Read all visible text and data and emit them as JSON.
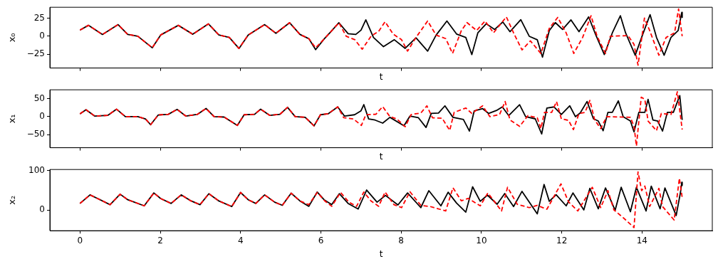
{
  "chart_data": [
    {
      "type": "line",
      "xlabel": "t",
      "ylabel": "x₀",
      "xlim": [
        -0.75,
        15.75
      ],
      "xticks": [
        0,
        2,
        4,
        6,
        8,
        10,
        12,
        14
      ],
      "ylim": [
        -44,
        40
      ],
      "yticks": [
        -25,
        0,
        25
      ],
      "tick_labels": "y",
      "grid": false,
      "series": [
        {
          "color": "#000000",
          "line_style": "solid",
          "x": [
            0,
            0.21,
            0.56,
            0.95,
            1.19,
            1.44,
            1.8,
            2.01,
            2.45,
            2.81,
            3.2,
            3.46,
            3.72,
            3.96,
            4.19,
            4.6,
            4.88,
            5.22,
            5.48,
            5.7,
            5.87,
            6.08,
            6.24,
            6.45,
            6.68,
            6.87,
            7.0,
            7.12,
            7.31,
            7.56,
            7.83,
            8.1,
            8.37,
            8.66,
            8.87,
            9.14,
            9.38,
            9.61,
            9.76,
            9.91,
            10.12,
            10.33,
            10.53,
            10.71,
            10.98,
            11.19,
            11.39,
            11.52,
            11.69,
            11.84,
            12.02,
            12.23,
            12.43,
            12.67,
            12.85,
            13.06,
            13.26,
            13.46,
            13.59,
            13.83,
            14.01,
            14.2,
            14.36,
            14.55,
            14.72,
            14.9,
            14.99,
            15.0
          ],
          "values": [
            8.4,
            15,
            2.4,
            16,
            2.4,
            0,
            -16,
            1.7,
            15,
            2.7,
            17,
            1.7,
            -1.7,
            -17,
            1.7,
            16,
            4,
            18.6,
            2.4,
            -3.4,
            -18.6,
            -4,
            5.7,
            18.6,
            3.4,
            2.4,
            8.4,
            22.6,
            -1.7,
            -14.5,
            -4.9,
            -16.8,
            -2.3,
            -20.6,
            1.5,
            21,
            3,
            -1.7,
            -25.4,
            4.6,
            17.2,
            9.3,
            19.7,
            6.2,
            22.9,
            -0.1,
            -4.9,
            -29,
            7.8,
            18.8,
            9.3,
            22.6,
            6.2,
            26.7,
            1.5,
            -25.4,
            4.6,
            28.3,
            4.6,
            -26.3,
            1.5,
            29.8,
            -1.7,
            -26.3,
            -1.7,
            7.8,
            33,
            26
          ]
        },
        {
          "color": "#ff0000",
          "line_style": "dashed",
          "x": [
            0,
            0.21,
            0.56,
            0.95,
            1.19,
            1.44,
            1.8,
            2.01,
            2.45,
            2.81,
            3.2,
            3.46,
            3.72,
            3.96,
            4.19,
            4.6,
            4.88,
            5.22,
            5.48,
            5.7,
            5.87,
            6.08,
            6.24,
            6.45,
            6.63,
            6.85,
            7.03,
            7.25,
            7.44,
            7.6,
            7.8,
            8.01,
            8.16,
            8.37,
            8.66,
            8.87,
            9.11,
            9.28,
            9.5,
            9.64,
            9.88,
            10.09,
            10.3,
            10.62,
            10.8,
            11.01,
            11.22,
            11.48,
            11.69,
            11.9,
            12.11,
            12.3,
            12.52,
            12.73,
            12.88,
            13.09,
            13.21,
            13.65,
            13.8,
            13.9,
            14.06,
            14.19,
            14.42,
            14.6,
            14.81,
            14.91,
            15.0
          ],
          "values": [
            8.4,
            15,
            2.4,
            16,
            2.4,
            0,
            -16,
            1.7,
            15,
            2.7,
            17,
            1.7,
            -1.7,
            -17,
            1.7,
            16,
            4,
            18.6,
            2.4,
            -3.4,
            -16,
            -4,
            5.7,
            18.6,
            0,
            -5,
            -18,
            0,
            6.8,
            20,
            3,
            -4.9,
            -20.6,
            -1.7,
            21,
            1.5,
            -3.3,
            -23.8,
            7.8,
            18.8,
            7.8,
            21,
            4.6,
            26.7,
            4.6,
            -19,
            -6.5,
            -23.8,
            10.9,
            26,
            4.6,
            -23.8,
            -1.7,
            28.3,
            -0.1,
            -23.8,
            -0.1,
            0.8,
            -11.2,
            -40,
            25,
            7.8,
            -26.3,
            -1.7,
            4.6,
            37.7,
            -0.1
          ]
        }
      ]
    },
    {
      "type": "line",
      "xlabel": "t",
      "ylabel": "x₁",
      "xlim": [
        -0.75,
        15.75
      ],
      "xticks": [
        0,
        2,
        4,
        6,
        8,
        10,
        12,
        14
      ],
      "ylim": [
        -86,
        74
      ],
      "yticks": [
        -50,
        0,
        50
      ],
      "tick_labels": "y",
      "grid": false,
      "series": [
        {
          "color": "#000000",
          "line_style": "solid",
          "x": [
            0,
            0.15,
            0.37,
            0.69,
            0.91,
            1.13,
            1.44,
            1.63,
            1.76,
            1.95,
            2.2,
            2.42,
            2.64,
            2.93,
            3.14,
            3.34,
            3.59,
            3.92,
            4.09,
            4.35,
            4.5,
            4.73,
            4.98,
            5.17,
            5.36,
            5.61,
            5.83,
            5.99,
            6.18,
            6.42,
            6.59,
            6.84,
            7.0,
            7.07,
            7.19,
            7.35,
            7.54,
            7.72,
            8.07,
            8.22,
            8.43,
            8.62,
            8.75,
            8.93,
            9.09,
            9.29,
            9.55,
            9.7,
            9.82,
            10.03,
            10.18,
            10.39,
            10.52,
            10.68,
            10.95,
            11.1,
            11.34,
            11.5,
            11.63,
            11.81,
            11.99,
            12.2,
            12.34,
            12.46,
            12.63,
            12.79,
            12.91,
            13.03,
            13.15,
            13.26,
            13.41,
            13.53,
            13.71,
            13.8,
            13.92,
            14.07,
            14.15,
            14.27,
            14.39,
            14.51,
            14.63,
            14.78,
            14.94,
            15.0
          ],
          "values": [
            7.7,
            19,
            1.3,
            3.2,
            20.5,
            0,
            0,
            -6.4,
            -22.4,
            4.5,
            6.4,
            19.9,
            1.3,
            6.4,
            22.4,
            0,
            -1.3,
            -24.4,
            5.1,
            6.4,
            20.5,
            3.2,
            6.4,
            25.6,
            0,
            -1.9,
            -25.6,
            5.1,
            7.7,
            26.9,
            1.3,
            5.1,
            16,
            33,
            -6.4,
            -9.6,
            -18,
            -2,
            -25.4,
            1.6,
            -3.2,
            -30,
            8.7,
            9.9,
            29.7,
            -2,
            -8,
            -40,
            15.9,
            21.9,
            8.7,
            17.7,
            26.7,
            2.8,
            32.7,
            -0.2,
            -6.2,
            -48,
            23.7,
            26.7,
            5.7,
            29.7,
            -0.2,
            9.9,
            41.7,
            -6.2,
            -12.2,
            -39,
            11.7,
            11.7,
            43.5,
            -0.2,
            -12.2,
            -42,
            11.7,
            11.7,
            47.6,
            -9.2,
            -12.2,
            -40,
            11.7,
            11.7,
            57.8,
            -9.2
          ]
        },
        {
          "color": "#ff0000",
          "line_style": "dashed",
          "x": [
            0,
            0.15,
            0.37,
            0.69,
            0.91,
            1.13,
            1.44,
            1.63,
            1.76,
            1.95,
            2.2,
            2.42,
            2.64,
            2.93,
            3.14,
            3.34,
            3.59,
            3.92,
            4.09,
            4.35,
            4.5,
            4.73,
            4.98,
            5.17,
            5.36,
            5.61,
            5.83,
            5.99,
            6.18,
            6.42,
            6.57,
            6.81,
            7.01,
            7.12,
            7.37,
            7.54,
            7.72,
            7.89,
            8.1,
            8.25,
            8.49,
            8.64,
            8.78,
            9.02,
            9.21,
            9.32,
            9.61,
            9.76,
            10.03,
            10.21,
            10.45,
            10.59,
            10.71,
            10.95,
            11.16,
            11.39,
            11.48,
            11.57,
            11.75,
            11.87,
            11.99,
            12.17,
            12.29,
            12.43,
            12.58,
            12.7,
            12.82,
            12.97,
            13.12,
            13.71,
            13.8,
            13.86,
            13.98,
            14.07,
            14.15,
            14.36,
            14.48,
            14.72,
            14.88,
            15.0
          ],
          "values": [
            7.7,
            19,
            1.3,
            3.2,
            20.5,
            0,
            0,
            -6.4,
            -22.4,
            4.5,
            6.4,
            19.9,
            1.3,
            6.4,
            22.4,
            0,
            -1.3,
            -24.4,
            5.1,
            6.4,
            20.5,
            3.2,
            6.4,
            25.6,
            0,
            -1.9,
            -25.6,
            5.1,
            7.7,
            26.9,
            -3.2,
            -6.4,
            -24.4,
            5.1,
            6.4,
            27.6,
            -0.2,
            -6.2,
            -28,
            5.7,
            9.9,
            29.7,
            -3.2,
            -4.4,
            -38,
            11.7,
            23.7,
            8.7,
            29.7,
            -0.2,
            5.7,
            41.7,
            -9.2,
            -27,
            2.8,
            -3.2,
            -33,
            11.7,
            11.7,
            41.7,
            -6.2,
            -10.5,
            -36,
            8.7,
            11.7,
            44.6,
            -9.2,
            -33,
            -0.2,
            -2,
            -27,
            -81,
            53.6,
            47.6,
            -12.2,
            -39,
            8.7,
            5.7,
            68.6,
            -36
          ]
        }
      ]
    },
    {
      "type": "line",
      "xlabel": "t",
      "ylabel": "x₂",
      "xlim": [
        -0.75,
        15.75
      ],
      "xticks": [
        0,
        2,
        4,
        6,
        8,
        10,
        12,
        14
      ],
      "ylim": [
        -52,
        103
      ],
      "yticks": [
        0,
        100
      ],
      "grid": false,
      "series": [
        {
          "color": "#000000",
          "line_style": "solid",
          "x": [
            0,
            0.25,
            0.44,
            0.75,
            1.0,
            1.19,
            1.6,
            1.84,
            2.01,
            2.27,
            2.52,
            2.77,
            2.99,
            3.21,
            3.46,
            3.78,
            4.0,
            4.19,
            4.38,
            4.6,
            4.85,
            5.04,
            5.26,
            5.48,
            5.7,
            5.91,
            6.08,
            6.27,
            6.46,
            6.68,
            6.93,
            7.14,
            7.4,
            7.61,
            7.92,
            8.16,
            8.49,
            8.69,
            8.99,
            9.17,
            9.38,
            9.61,
            9.78,
            9.97,
            10.15,
            10.39,
            10.58,
            10.8,
            11.01,
            11.39,
            11.56,
            11.69,
            11.86,
            12.11,
            12.28,
            12.55,
            12.7,
            12.91,
            13.09,
            13.33,
            13.48,
            13.71,
            13.86,
            14.1,
            14.23,
            14.45,
            14.57,
            14.85,
            14.96,
            14.99,
            15.0
          ],
          "values": [
            17,
            38.7,
            29.4,
            14,
            40.5,
            26.4,
            11,
            43.6,
            29.4,
            17,
            38.7,
            23.3,
            14,
            41.7,
            23.3,
            9.2,
            44.8,
            26.4,
            17,
            38.7,
            20.2,
            12.3,
            43,
            23.3,
            9.8,
            46,
            26.4,
            14,
            41.7,
            17,
            3,
            51,
            20.2,
            37.4,
            13.3,
            43.6,
            6.5,
            49.4,
            11,
            45.4,
            17.9,
            -5,
            59.2,
            22.5,
            38,
            15,
            42,
            9.3,
            47.7,
            -9.5,
            65,
            22.5,
            39,
            11,
            43.6,
            0.7,
            55.2,
            3.6,
            56.3,
            -0.4,
            58,
            -3.8,
            58,
            -2,
            60.9,
            3.6,
            56.3,
            -13.6,
            46.6,
            70.6,
            62.6
          ]
        },
        {
          "color": "#ff0000",
          "line_style": "dashed",
          "x": [
            0,
            0.25,
            0.44,
            0.75,
            1.0,
            1.19,
            1.6,
            1.84,
            2.01,
            2.27,
            2.52,
            2.77,
            2.99,
            3.21,
            3.46,
            3.78,
            4.0,
            4.19,
            4.38,
            4.6,
            4.85,
            5.04,
            5.26,
            5.48,
            5.7,
            5.91,
            6.1,
            6.27,
            6.49,
            6.7,
            6.89,
            7.07,
            7.25,
            7.44,
            7.6,
            7.82,
            8.01,
            8.22,
            8.49,
            8.72,
            9.11,
            9.29,
            9.5,
            9.67,
            9.97,
            10.16,
            10.5,
            10.65,
            10.89,
            11.19,
            11.39,
            11.63,
            11.98,
            12.17,
            12.4,
            12.76,
            12.97,
            13.15,
            13.3,
            13.53,
            13.8,
            13.9,
            13.99,
            14.07,
            14.19,
            14.42,
            14.51,
            14.8,
            14.93,
            15.0
          ],
          "values": [
            17,
            38.7,
            29.4,
            14,
            40.5,
            26.4,
            11,
            43.6,
            29.4,
            17,
            38.7,
            23.3,
            14,
            41.7,
            23.3,
            9.2,
            44.8,
            26.4,
            17,
            38.7,
            20.2,
            12.3,
            43,
            23.3,
            14,
            44.8,
            23.3,
            9.8,
            44.8,
            20.2,
            9.8,
            46,
            23.3,
            9.8,
            46,
            14,
            6.5,
            46.6,
            12.2,
            9.3,
            -2,
            56.9,
            23.7,
            29.8,
            11,
            43.6,
            -2,
            58,
            15,
            6.5,
            12.2,
            2.4,
            66.6,
            20.8,
            -2,
            58,
            6.5,
            49.4,
            0.7,
            -19,
            -44,
            97,
            49.4,
            60.9,
            9.3,
            55.2,
            9.3,
            -25,
            80.8,
            32.2
          ]
        }
      ]
    }
  ]
}
